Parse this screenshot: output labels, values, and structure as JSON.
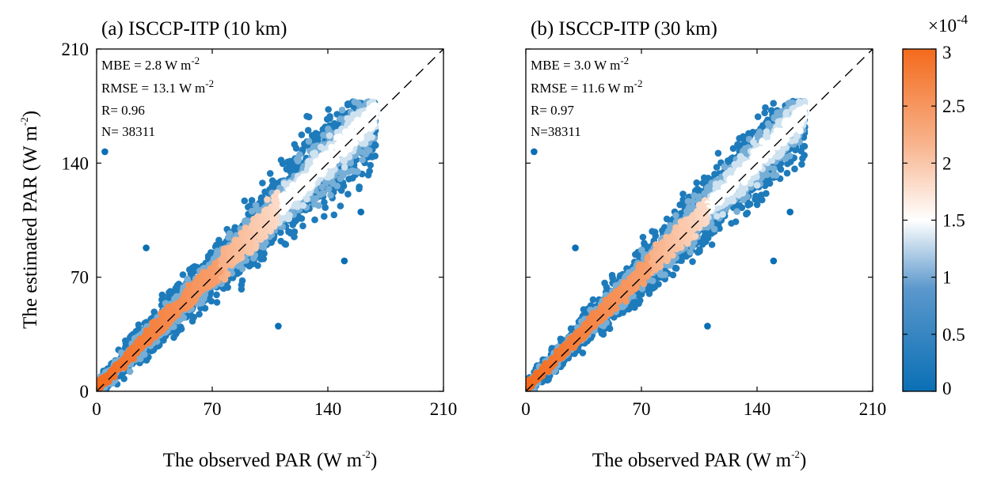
{
  "chart_data": [
    {
      "type": "scatter",
      "subtype": "density scatter",
      "title": "(a) ISCCP-ITP (10 km)",
      "xlabel": "The observed PAR (W m",
      "xlabel_sup": "-2",
      "xlabel_close": ")",
      "ylabel": "The estimated PAR (W m",
      "ylabel_sup": "-2",
      "ylabel_close": ")",
      "xlim": [
        0,
        210
      ],
      "ylim": [
        0,
        210
      ],
      "xticks": [
        "0",
        "70",
        "140",
        "210"
      ],
      "yticks": [
        "0",
        "70",
        "140",
        "210"
      ],
      "reference_line": "1:1 dashed",
      "stats": {
        "mbe": "MBE = 2.8 W m",
        "mbe_sup": "-2",
        "rmse": "RMSE = 13.1 W m",
        "rmse_sup": "-2",
        "r": "R= 0.96",
        "n": "N= 38311"
      },
      "spread": 1.0
    },
    {
      "type": "scatter",
      "subtype": "density scatter",
      "title": "(b) ISCCP-ITP (30 km)",
      "xlabel": "The observed PAR (W m",
      "xlabel_sup": "-2",
      "xlabel_close": ")",
      "xlim": [
        0,
        210
      ],
      "ylim": [
        0,
        210
      ],
      "xticks": [
        "0",
        "70",
        "140",
        "210"
      ],
      "reference_line": "1:1 dashed",
      "stats": {
        "mbe": "MBE = 3.0 W m",
        "mbe_sup": "-2",
        "rmse": "RMSE = 11.6 W m",
        "rmse_sup": "-2",
        "r": "R= 0.97",
        "n": "N=38311"
      },
      "spread": 0.88
    }
  ],
  "colorbar": {
    "multiplier": "×10",
    "multiplier_exp": "-4",
    "range": [
      0,
      3
    ],
    "ticks": [
      "0",
      "0.5",
      "1",
      "1.5",
      "2",
      "2.5",
      "3"
    ],
    "colors": [
      "#0a6fb5",
      "#ffffff",
      "#f36a1c"
    ]
  }
}
